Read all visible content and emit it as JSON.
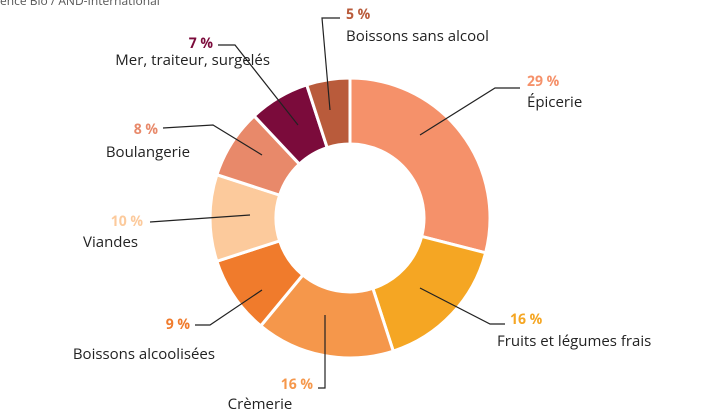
{
  "chart_data": {
    "type": "donut",
    "source": "ence Bio / AND-International",
    "categories": [
      "Épicerie",
      "Fruits et légumes frais",
      "Crèmerie",
      "Boissons alcoolisées",
      "Viandes",
      "Boulangerie",
      "Mer, traiteur, surgelés",
      "Boissons sans alcool"
    ],
    "values": [
      29,
      16,
      16,
      9,
      10,
      8,
      7,
      5
    ],
    "value_labels": [
      "29 %",
      "16 %",
      "16 %",
      "9 %",
      "10 %",
      "8 %",
      "7 %",
      "5 %"
    ],
    "colors": [
      "#f5916a",
      "#f5a623",
      "#f5974b",
      "#f07b2c",
      "#fcca9c",
      "#e8896a",
      "#7b0b3b",
      "#b95b3b"
    ]
  }
}
